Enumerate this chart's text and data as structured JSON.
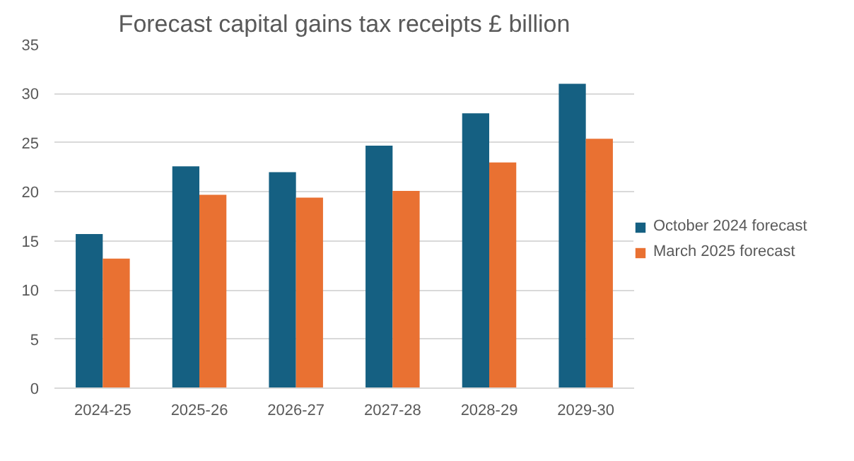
{
  "chart_data": {
    "type": "bar",
    "title": "Forecast capital gains tax receipts £ billion",
    "categories": [
      "2024-25",
      "2025-26",
      "2026-27",
      "2027-28",
      "2028-29",
      "2029-30"
    ],
    "series": [
      {
        "name": "October 2024 forecast",
        "color": "#156082",
        "values": [
          15.7,
          22.6,
          22.0,
          24.7,
          28.0,
          31.0
        ]
      },
      {
        "name": "March 2025 forecast",
        "color": "#e97132",
        "values": [
          13.2,
          19.7,
          19.4,
          20.1,
          23.0,
          25.4
        ]
      }
    ],
    "ylim": [
      0,
      35
    ],
    "yticks": [
      0,
      5,
      10,
      15,
      20,
      25,
      30,
      35
    ],
    "grid": "y",
    "legend": "right"
  }
}
